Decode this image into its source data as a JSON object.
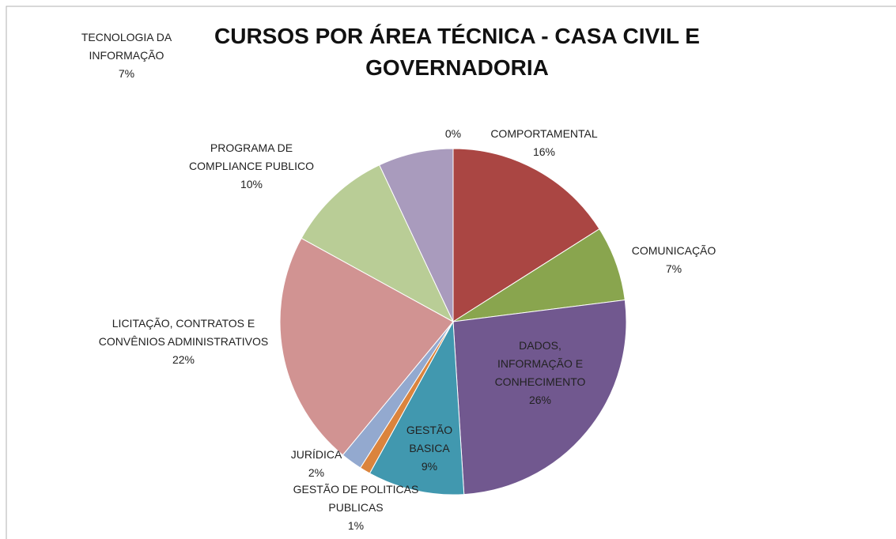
{
  "chart_data": {
    "type": "pie",
    "title": "CURSOS POR ÁREA TÉCNICA - CASA CIVIL E GOVERNADORIA",
    "categories": [
      null,
      "COMPORTAMENTAL",
      "COMUNICAÇÃO",
      "DADOS, INFORMAÇÃO E CONHECIMENTO",
      "GESTÃO BASICA",
      "GESTÃO DE POLITICAS PUBLICAS",
      "JURÍDICA",
      "LICITAÇÃO, CONTRATOS E CONVÊNIOS ADMINISTRATIVOS",
      "PROGRAMA DE COMPLIANCE PUBLICO",
      "TECNOLOGIA DA INFORMAÇÃO"
    ],
    "values": [
      0,
      16,
      7,
      26,
      9,
      1,
      2,
      22,
      10,
      7
    ],
    "value_labels": [
      "0%",
      "16%",
      "7%",
      "26%",
      "9%",
      "1%",
      "2%",
      "22%",
      "10%",
      "7%"
    ],
    "colors": [
      "#4572a7",
      "#aa4643",
      "#89a54e",
      "#71588f",
      "#4198af",
      "#db843d",
      "#93a9cf",
      "#d19392",
      "#b9cd96",
      "#a99bbd"
    ]
  }
}
